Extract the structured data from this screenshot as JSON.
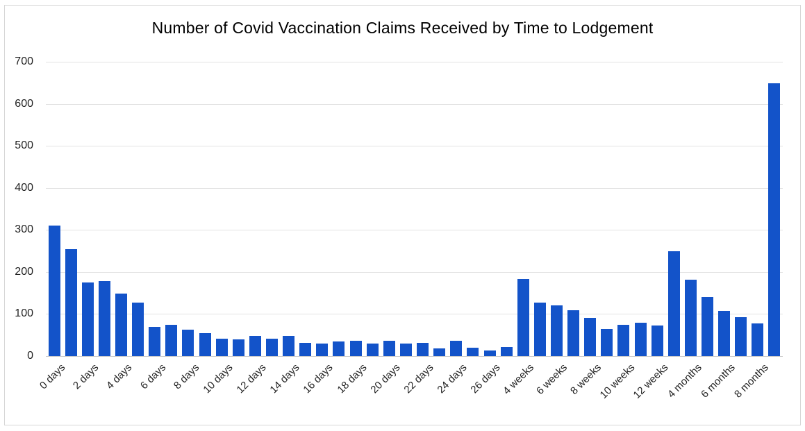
{
  "chart_data": {
    "type": "bar",
    "title": "Number of Covid Vaccination Claims Received by Time to Lodgement",
    "xlabel": "",
    "ylabel": "",
    "ylim": [
      0,
      700
    ],
    "y_tick_interval": 100,
    "y_tick_labels": [
      "0",
      "100",
      "200",
      "300",
      "400",
      "500",
      "600",
      "700"
    ],
    "x_tick_labels": [
      "0 days",
      "2 days",
      "4 days",
      "6 days",
      "8 days",
      "10 days",
      "12 days",
      "14 days",
      "16 days",
      "18 days",
      "20 days",
      "22 days",
      "24 days",
      "26 days",
      "4 weeks",
      "6 weeks",
      "8 weeks",
      "10 weeks",
      "12 weeks",
      "4 months",
      "6 months",
      "8 months"
    ],
    "x_tick_every_n_bars": 2,
    "values": [
      310,
      255,
      175,
      178,
      148,
      127,
      69,
      74,
      63,
      54,
      42,
      40,
      48,
      42,
      48,
      32,
      29,
      35,
      36,
      30,
      37,
      29,
      32,
      18,
      37,
      20,
      13,
      21,
      183,
      127,
      120,
      109,
      90,
      65,
      75,
      80,
      73,
      250,
      181,
      140,
      108,
      93,
      77,
      648
    ],
    "bar_count": 44,
    "bar_color": "#1353c9",
    "gridline_color": "#e2e2e2",
    "axis_line_color": "#c6c6c6",
    "text_color": "#1f1f1f",
    "grid": "horizontal",
    "legend": "none"
  }
}
